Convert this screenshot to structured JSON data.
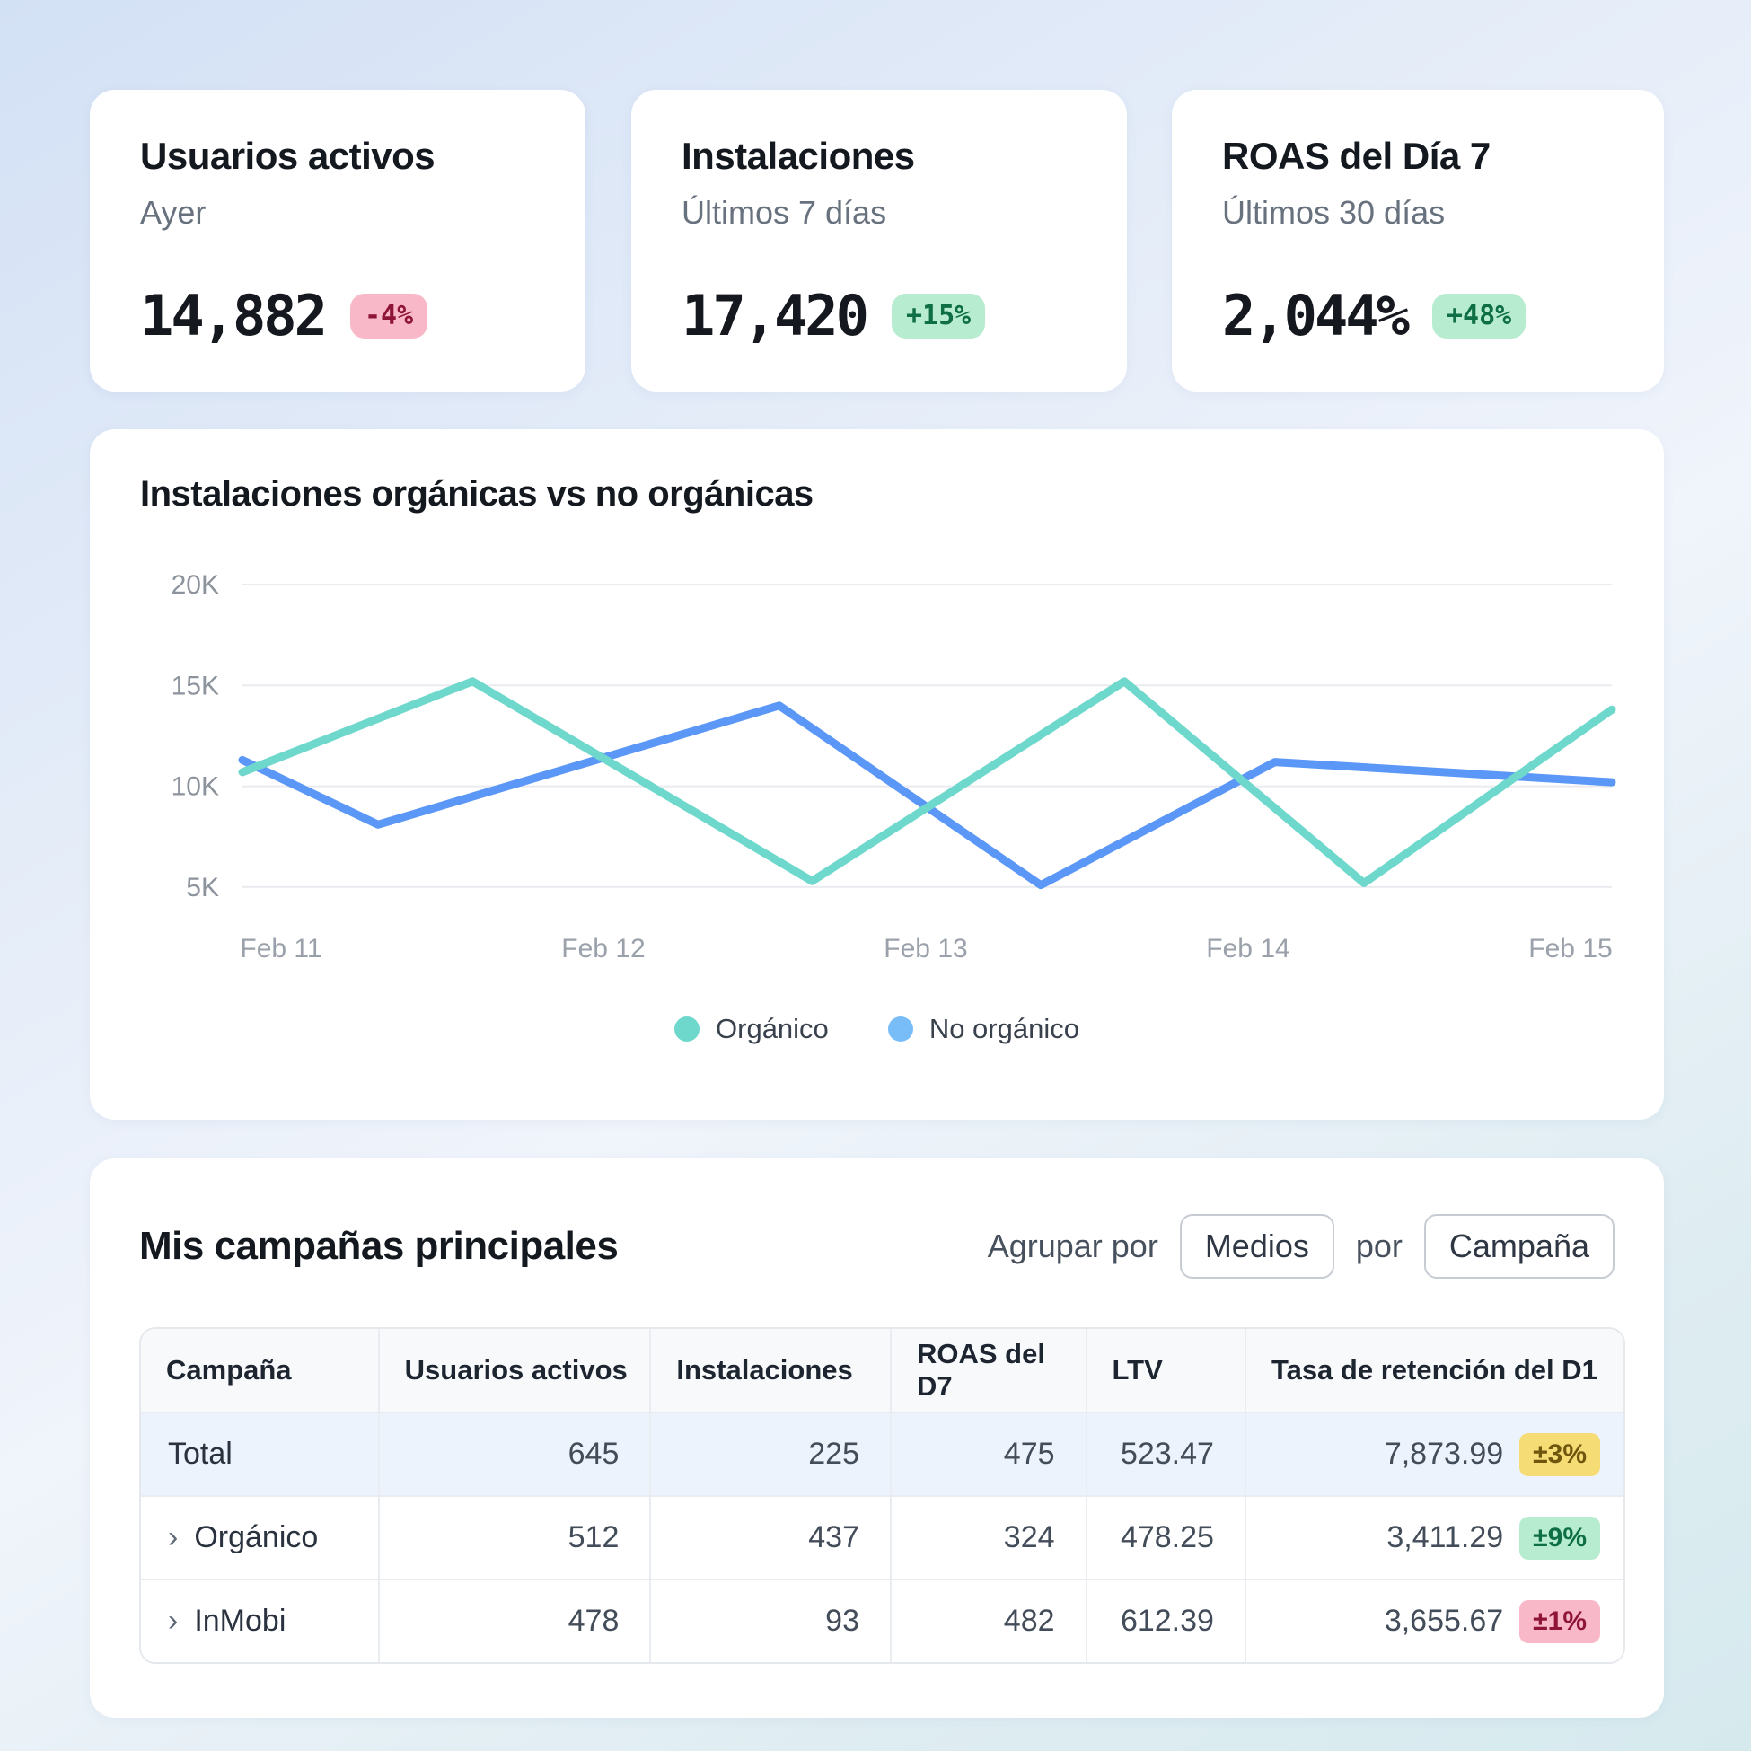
{
  "kpi_cards": [
    {
      "title": "Usuarios activos",
      "subtitle": "Ayer",
      "value": "14,882",
      "badge": {
        "label": "-4%",
        "variant": "pink"
      }
    },
    {
      "title": "Instalaciones",
      "subtitle": "Últimos 7 días",
      "value": "17,420",
      "badge": {
        "label": "+15%",
        "variant": "green"
      }
    },
    {
      "title": "ROAS del Día 7",
      "subtitle": "Últimos 30 días",
      "value": "2,044%",
      "badge": {
        "label": "+48%",
        "variant": "green"
      }
    }
  ],
  "chart_card": {
    "title": "Instalaciones orgánicas vs no orgánicas",
    "chart_data": {
      "type": "line",
      "title": "Instalaciones orgánicas vs no orgánicas",
      "x_ticks": [
        "Feb 11",
        "Feb 12",
        "Feb 13",
        "Feb 14",
        "Feb 15"
      ],
      "y_ticks": [
        "20K",
        "15K",
        "10K",
        "5K"
      ],
      "y_axis_range": [
        0,
        20000
      ],
      "grid": "horizontal",
      "legend_position": "bottom",
      "series": [
        {
          "name": "Orgánico",
          "color": "#6fd8cc",
          "legend_color": "#6fd8cc",
          "points": [
            {
              "x": 0.0,
              "y": 10700
            },
            {
              "x": 0.168,
              "y": 15200
            },
            {
              "x": 0.416,
              "y": 5300
            },
            {
              "x": 0.644,
              "y": 15200
            },
            {
              "x": 0.819,
              "y": 5200
            },
            {
              "x": 1.0,
              "y": 13800
            }
          ]
        },
        {
          "name": "No orgánico",
          "color": "#5b97f7",
          "legend_color": "#79bdf8",
          "points": [
            {
              "x": 0.0,
              "y": 11300
            },
            {
              "x": 0.099,
              "y": 8100
            },
            {
              "x": 0.392,
              "y": 14000
            },
            {
              "x": 0.583,
              "y": 5100
            },
            {
              "x": 0.754,
              "y": 11200
            },
            {
              "x": 1.0,
              "y": 10200
            }
          ]
        }
      ]
    }
  },
  "table_card": {
    "title": "Mis campañas principales",
    "group_by": {
      "prefix": "Agrupar por",
      "button1": "Medios",
      "middle": "por",
      "button2": "Campaña"
    },
    "chevron_icon": "›",
    "table": {
      "columns": [
        "Campaña",
        "Usuarios activos",
        "Instalaciones",
        "ROAS del D7",
        "LTV",
        "Tasa de retención del D1"
      ],
      "rows": [
        {
          "name": "Total",
          "active_users": "645",
          "installs": "225",
          "roas_d7": "475",
          "ltv": "523.47",
          "retention": "7,873.99",
          "badge": {
            "label": "±3%",
            "variant": "yellow"
          }
        },
        {
          "name": "Orgánico",
          "active_users": "512",
          "installs": "437",
          "roas_d7": "324",
          "ltv": "478.25",
          "retention": "3,411.29",
          "badge": {
            "label": "±9%",
            "variant": "green"
          }
        },
        {
          "name": "InMobi",
          "active_users": "478",
          "installs": "93",
          "roas_d7": "482",
          "ltv": "612.39",
          "retention": "3,655.67",
          "badge": {
            "label": "±1%",
            "variant": "pink"
          }
        }
      ]
    }
  },
  "badge_palette": {
    "pink": {
      "bg": "#f9b8c8",
      "fg": "#8e1537"
    },
    "green": {
      "bg": "#b7ecd0",
      "fg": "#0e6e45"
    },
    "yellow": {
      "bg": "#f6dc74",
      "fg": "#6f560e"
    }
  },
  "colors": {
    "card_bg": "#ffffff",
    "text_primary": "#14181f",
    "text_secondary": "#68717e",
    "grid_line": "#e9ebef",
    "axis_label": "#8c939d",
    "table_header_bg": "#f8f9fb",
    "table_highlight_row_bg": "#ecf3fc",
    "series_organic": "#6fd8cc",
    "series_non_organic": "#5b97f7"
  }
}
